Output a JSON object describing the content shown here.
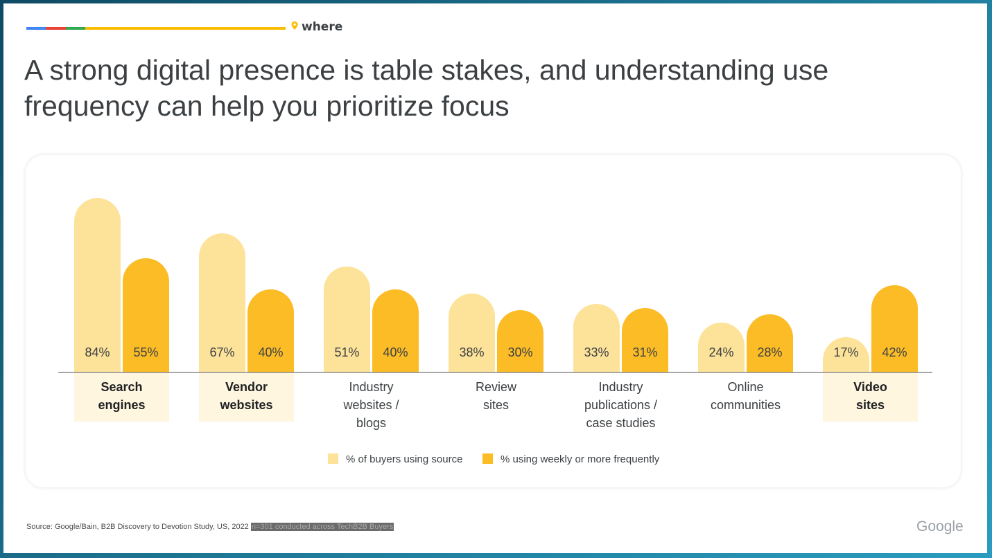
{
  "header": {
    "section_label": "where",
    "brand_colors": [
      "#4285F4",
      "#EA4335",
      "#34A853",
      "#FBBC04"
    ]
  },
  "title_line1": "A strong digital presence is table stakes, and understanding use",
  "title_line2": "frequency can help you prioritize focus",
  "chart_data": {
    "type": "bar",
    "categories": [
      [
        "Search",
        "engines"
      ],
      [
        "Vendor",
        "websites"
      ],
      [
        "Industry",
        "websites /",
        "blogs"
      ],
      [
        "Review",
        "sites"
      ],
      [
        "Industry",
        "publications /",
        "case studies"
      ],
      [
        "Online",
        "communities"
      ],
      [
        "Video",
        "sites"
      ]
    ],
    "highlighted_categories": [
      0,
      1,
      6
    ],
    "series": [
      {
        "name": "% of buyers using source",
        "values": [
          84,
          67,
          51,
          38,
          33,
          24,
          17
        ],
        "color": "#FDE39A"
      },
      {
        "name": "% using weekly or more frequently",
        "values": [
          55,
          40,
          40,
          30,
          31,
          28,
          42
        ],
        "color": "#FBBC26"
      }
    ],
    "value_suffix": "%",
    "grid": false,
    "legend_position": "bottom"
  },
  "footer": {
    "source": "Source: Google/Bain, B2B Discovery to Devotion Study, US, 2022",
    "note": "n=301 conducted across TechB2B Buyers",
    "logo": "Google"
  }
}
